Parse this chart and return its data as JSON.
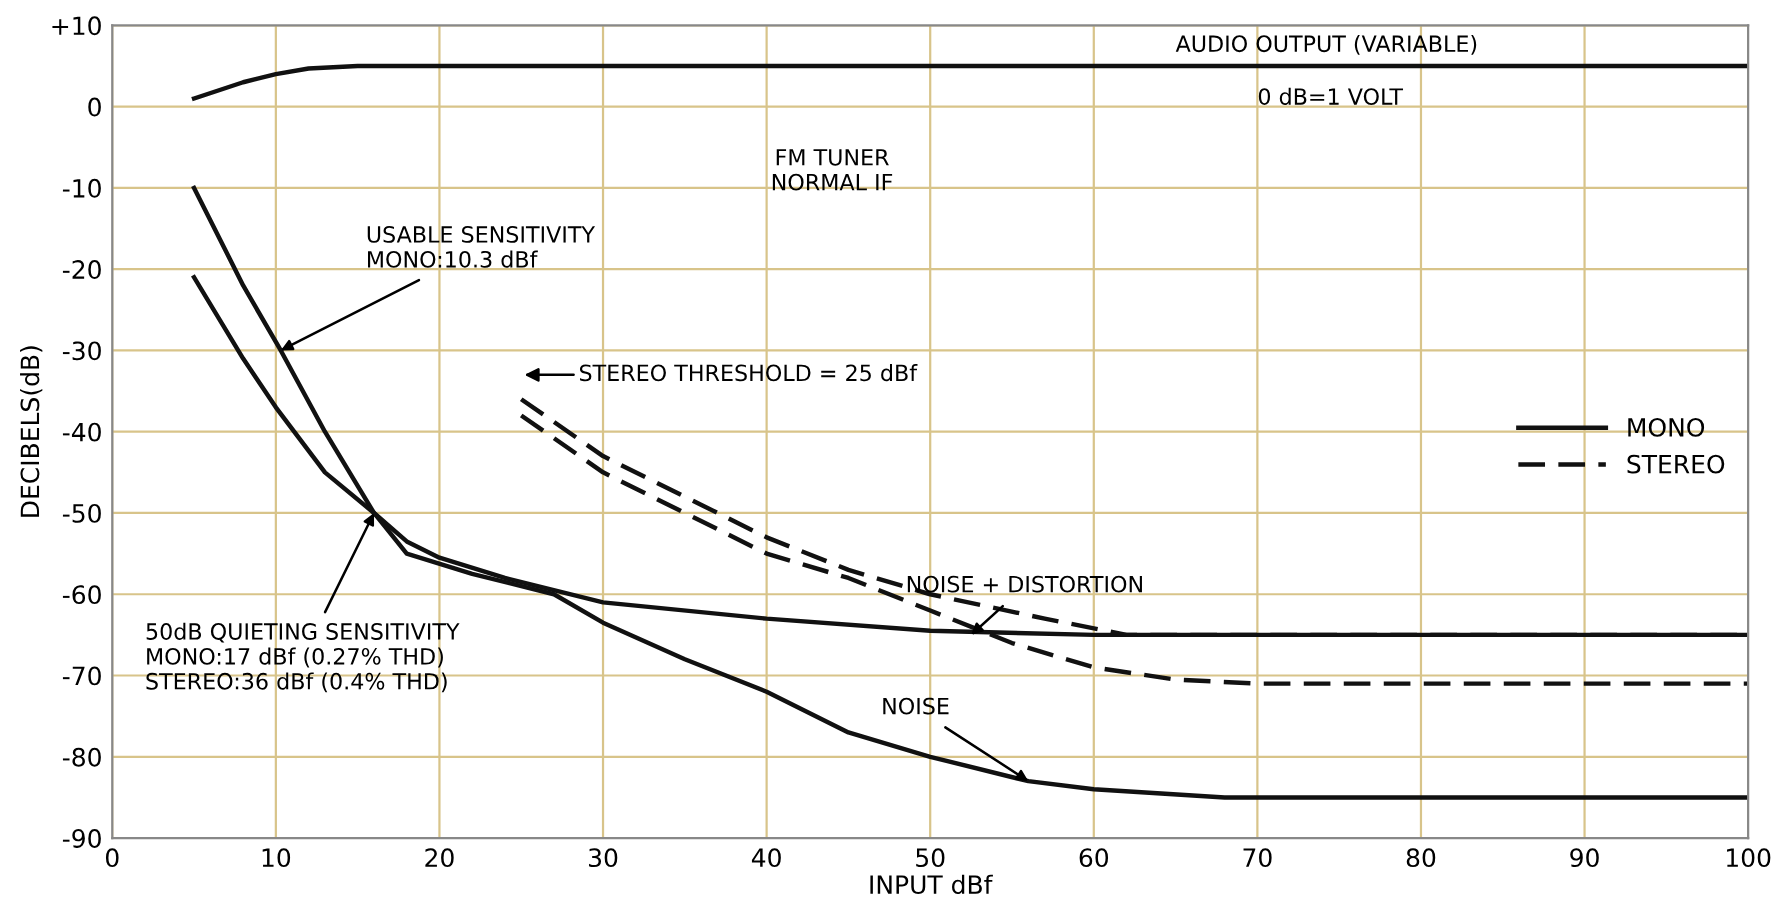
{
  "chart_data": {
    "type": "line",
    "xlabel": "INPUT dBf",
    "ylabel": "DECIBELS(dB)",
    "xlim": [
      0,
      100
    ],
    "xticks": [
      0,
      10,
      20,
      30,
      40,
      50,
      60,
      70,
      80,
      90,
      100
    ],
    "ylim": [
      -90,
      10
    ],
    "yticks": [
      {
        "value": 10,
        "label": "+10"
      },
      0,
      -10,
      -20,
      -30,
      -40,
      -50,
      -60,
      -70,
      -80,
      -90
    ],
    "grid": true,
    "legend": "right",
    "marker": "none",
    "series": [
      {
        "color": "#111111",
        "line_style": "solid",
        "x": [
          5,
          8,
          10,
          12,
          15,
          20,
          30,
          50,
          100
        ],
        "values": [
          1,
          3,
          4,
          4.7,
          5,
          5,
          5,
          5,
          5
        ]
      },
      {
        "name": "MONO",
        "color": "#111111",
        "line_style": "solid",
        "x": [
          5,
          8,
          10.3,
          13,
          16,
          18,
          20,
          24,
          30,
          40,
          50,
          60,
          70,
          100
        ],
        "values": [
          -10,
          -22,
          -30,
          -40,
          -50,
          -53.5,
          -55.5,
          -58,
          -61,
          -63,
          -64.5,
          -65,
          -65,
          -65
        ]
      },
      {
        "color": "#111111",
        "line_style": "solid",
        "x": [
          5,
          8,
          10,
          13,
          16,
          18,
          22,
          27,
          30,
          35,
          40,
          45,
          50,
          56,
          60,
          68,
          100
        ],
        "values": [
          -21,
          -31,
          -37,
          -45,
          -50,
          -55,
          -57.5,
          -60,
          -63.5,
          -68,
          -72,
          -77,
          -80,
          -83,
          -84,
          -85,
          -85
        ]
      },
      {
        "name": "STEREO",
        "color": "#111111",
        "line_style": "dashed",
        "x": [
          25,
          30,
          35,
          40,
          45,
          50,
          57,
          62,
          70,
          100
        ],
        "values": [
          -36,
          -43,
          -48,
          -53,
          -57,
          -60,
          -63,
          -65,
          -65,
          -65
        ]
      },
      {
        "color": "#111111",
        "line_style": "dashed",
        "x": [
          25,
          30,
          35,
          40,
          45,
          50,
          55,
          60,
          65,
          70,
          100
        ],
        "values": [
          -38,
          -45,
          -50,
          -55,
          -58,
          -62,
          -66,
          -69,
          -70.5,
          -71,
          -71
        ]
      }
    ],
    "annotations": [
      "AUDIO OUTPUT (VARIABLE)",
      "0 dB=1 VOLT",
      "FM TUNER\nNORMAL IF",
      {
        "text": "USABLE SENSITIVITY\nMONO:10.3 dBf",
        "x": 10.3,
        "y": -30
      },
      "STEREO THRESHOLD = 25 dBf",
      {
        "text": "50dB QUIETING SENSITIVITY\nMONO:17 dBf (0.27% THD)\nSTEREO:36 dBf (0.4% THD)",
        "x": 16,
        "y": -50
      },
      {
        "text": "NOISE + DISTORTION",
        "x": 52.5,
        "y": -65
      },
      {
        "text": "NOISE",
        "x": 56,
        "y": -83
      }
    ]
  }
}
